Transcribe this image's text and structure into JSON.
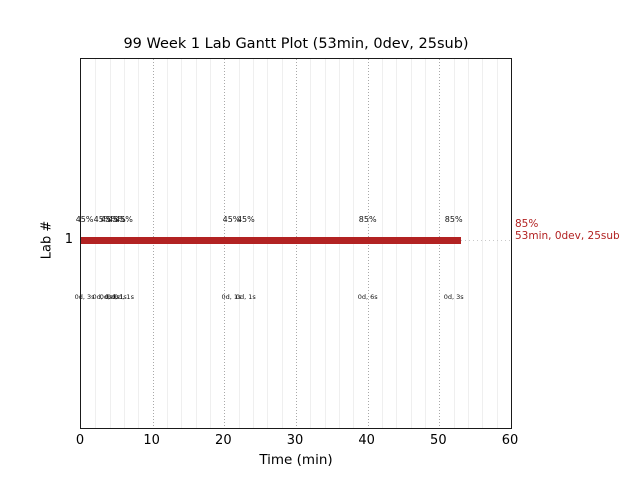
{
  "title": "99 Week 1 Lab Gantt Plot (53min, 0dev, 25sub)",
  "colors": {
    "bar": "#b22222",
    "summary_text": "#b22222",
    "grid_major": "#a9a9a9",
    "grid_minor": "#efefef",
    "axis": "#1a1a1a",
    "text": "#000000"
  },
  "chart_data": {
    "type": "bar",
    "subtype": "gantt-horizontal",
    "title": "99 Week 1 Lab Gantt Plot (53min, 0dev, 25sub)",
    "xlabel": "Time (min)",
    "ylabel": "Lab #",
    "xlim": [
      0,
      60
    ],
    "xticks": [
      0,
      10,
      20,
      30,
      40,
      50,
      60
    ],
    "yticks": [
      "1"
    ],
    "grid": {
      "major_every": 10,
      "minor_every": 2,
      "major_style": "dotted",
      "minor_style": "solid"
    },
    "bars": [
      {
        "lab": "1",
        "start": 0,
        "end": 53,
        "color": "#b22222"
      }
    ],
    "events": [
      {
        "t": 0.5,
        "pct": "45%",
        "dur": "0d, 3s"
      },
      {
        "t": 3,
        "pct": "45%",
        "dur": "0d, 0s"
      },
      {
        "t": 4,
        "pct": "45%",
        "dur": "0d, 0s"
      },
      {
        "t": 5,
        "pct": "45%",
        "dur": "0d, 1s"
      },
      {
        "t": 6,
        "pct": "45%",
        "dur": "0d, 1s"
      },
      {
        "t": 21,
        "pct": "45%",
        "dur": "0d, 1s"
      },
      {
        "t": 23,
        "pct": "45%",
        "dur": "0d, 1s"
      },
      {
        "t": 40,
        "pct": "85%",
        "dur": "0d, 6s"
      },
      {
        "t": 52,
        "pct": "85%",
        "dur": "0d, 3s"
      }
    ],
    "summary": {
      "pct": "85%",
      "label": "53min, 0dev, 25sub"
    }
  }
}
